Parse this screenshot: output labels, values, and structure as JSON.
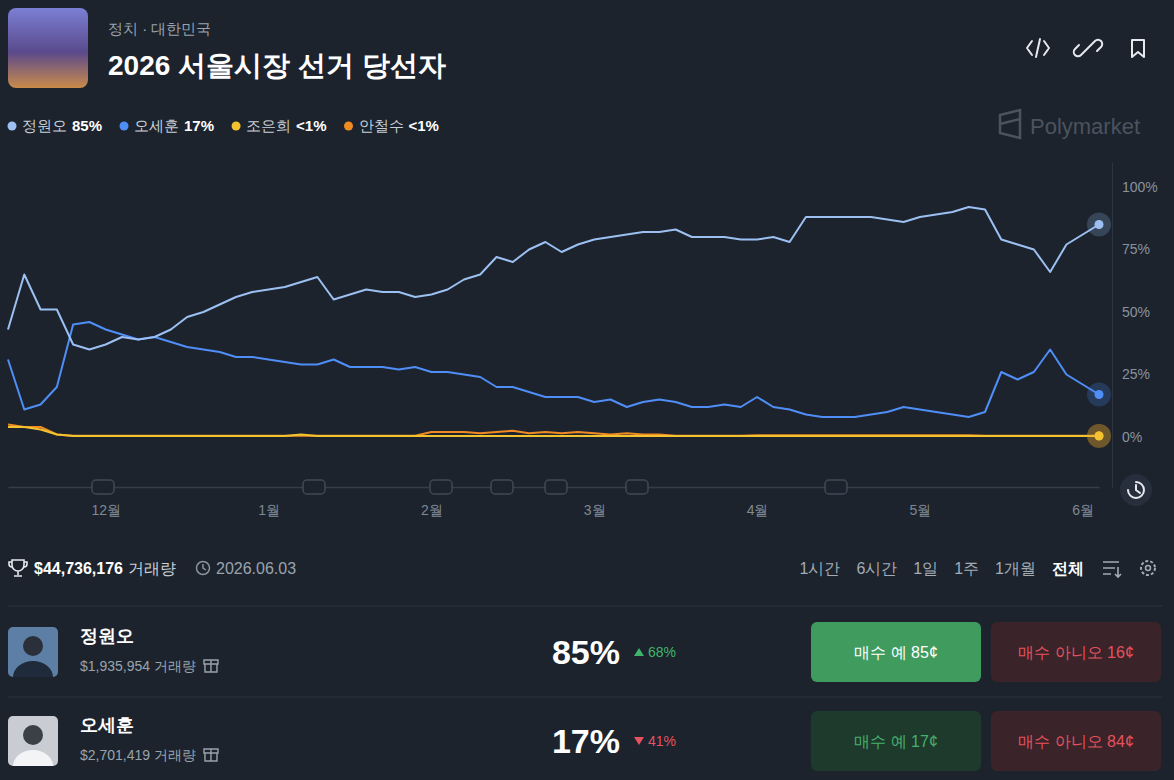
{
  "header": {
    "breadcrumb": "정치 · 대한민국",
    "title": "2026 서울시장 선거 당선자",
    "brand": "Polymarket"
  },
  "chart_data": {
    "type": "line",
    "categories": [
      null,
      null,
      null,
      null,
      null,
      null,
      "12월",
      null,
      null,
      null,
      null,
      null,
      null,
      null,
      null,
      null,
      "1월",
      null,
      null,
      null,
      null,
      null,
      null,
      null,
      null,
      null,
      "2월",
      null,
      null,
      null,
      null,
      null,
      null,
      null,
      null,
      null,
      "3월",
      null,
      null,
      null,
      null,
      null,
      null,
      null,
      null,
      null,
      "4월",
      null,
      null,
      null,
      null,
      null,
      null,
      null,
      null,
      null,
      "5월",
      null,
      null,
      null,
      null,
      null,
      null,
      null,
      null,
      null,
      "6월",
      null
    ],
    "series": [
      {
        "name": "정원오",
        "current_label": "85%",
        "color": "#9cc0f2",
        "values": [
          43,
          65,
          51,
          51,
          37,
          35,
          37,
          40,
          39,
          40,
          43,
          48,
          50,
          53,
          56,
          58,
          59,
          60,
          62,
          64,
          55,
          57,
          59,
          58,
          58,
          56,
          57,
          59,
          63,
          65,
          72,
          70,
          75,
          78,
          74,
          77,
          79,
          80,
          81,
          82,
          82,
          83,
          80,
          80,
          80,
          79,
          79,
          80,
          78,
          88,
          88,
          88,
          88,
          88,
          87,
          86,
          88,
          89,
          90,
          92,
          91,
          79,
          77,
          75,
          66,
          77,
          81,
          85
        ]
      },
      {
        "name": "오세훈",
        "current_label": "17%",
        "color": "#4f8ef7",
        "values": [
          31,
          11,
          13,
          20,
          45,
          46,
          43,
          41,
          39,
          40,
          38,
          36,
          35,
          34,
          32,
          32,
          31,
          30,
          29,
          29,
          31,
          28,
          28,
          28,
          27,
          28,
          26,
          26,
          25,
          24,
          20,
          20,
          18,
          16,
          16,
          16,
          14,
          15,
          12,
          14,
          15,
          14,
          12,
          12,
          13,
          12,
          16,
          12,
          11,
          9,
          8,
          8,
          8,
          9,
          10,
          12,
          11,
          10,
          9,
          8,
          10,
          26,
          23,
          26,
          35,
          25,
          21,
          17
        ]
      },
      {
        "name": "조은희",
        "current_label": "<1%",
        "color": "#f2c230",
        "values": [
          4,
          4,
          3,
          1,
          0.4,
          0.4,
          0.4,
          0.4,
          0.4,
          0.4,
          0.4,
          0.4,
          0.4,
          0.4,
          0.4,
          0.4,
          0.4,
          0.4,
          1,
          0.4,
          0.4,
          0.4,
          0.4,
          0.4,
          0.4,
          0.4,
          0.4,
          0.4,
          0.4,
          0.4,
          0.4,
          0.4,
          0.4,
          0.4,
          0.4,
          0.4,
          0.4,
          0.4,
          0.4,
          0.4,
          0.4,
          0.4,
          0.4,
          0.4,
          0.4,
          0.4,
          0.4,
          0.4,
          0.4,
          0.4,
          0.4,
          0.4,
          0.4,
          0.4,
          0.4,
          0.4,
          0.4,
          0.4,
          0.4,
          0.4,
          0.4,
          0.4,
          0.4,
          0.4,
          0.4,
          0.4,
          0.4,
          0.4
        ]
      },
      {
        "name": "안철수",
        "current_label": "<1%",
        "color": "#ef8b22",
        "values": [
          5,
          4,
          4,
          1,
          0.5,
          0.5,
          0.5,
          0.5,
          0.5,
          0.5,
          0.5,
          0.5,
          0.5,
          0.5,
          0.5,
          0.5,
          0.5,
          0.5,
          0.5,
          0.5,
          0.5,
          0.5,
          0.5,
          0.5,
          0.5,
          0.5,
          2,
          2,
          2,
          1.5,
          2,
          2.5,
          1.5,
          2,
          1.5,
          2,
          1.5,
          1,
          1.5,
          1,
          1,
          0.5,
          0.5,
          0.5,
          0.5,
          0.5,
          0.7,
          0.7,
          0.7,
          0.7,
          0.7,
          0.7,
          0.7,
          0.7,
          0.7,
          0.7,
          0.7,
          0.7,
          0.7,
          0.7,
          0.5,
          0.5,
          0.5,
          0.5,
          0.5,
          0.5,
          0.5,
          0.5
        ]
      }
    ],
    "ylim": [
      -20,
      110
    ],
    "yticks": [
      {
        "value": 100,
        "label": "100%"
      },
      {
        "value": 75,
        "label": "75%"
      },
      {
        "value": 50,
        "label": "50%"
      },
      {
        "value": 25,
        "label": "25%"
      },
      {
        "value": 0,
        "label": "0%"
      }
    ],
    "grid": false,
    "legend": "top-left"
  },
  "footer": {
    "total_volume": "$44,736,176",
    "volume_word": "거래량",
    "date": "2026.06.03",
    "ranges": [
      "1시간",
      "6시간",
      "1일",
      "1주",
      "1개월",
      "전체"
    ],
    "active_range": "전체"
  },
  "outcomes": [
    {
      "name": "정원오",
      "volume": "$1,935,954 거래량",
      "chance": "85%",
      "change": "68%",
      "direction": "up",
      "buy_yes": "매수 예 85¢",
      "buy_no": "매수 아니오 16¢"
    },
    {
      "name": "오세훈",
      "volume": "$2,701,419 거래량",
      "chance": "17%",
      "change": "41%",
      "direction": "down",
      "buy_yes": "매수 예 17¢",
      "buy_no": "매수 아니오 84¢"
    }
  ]
}
